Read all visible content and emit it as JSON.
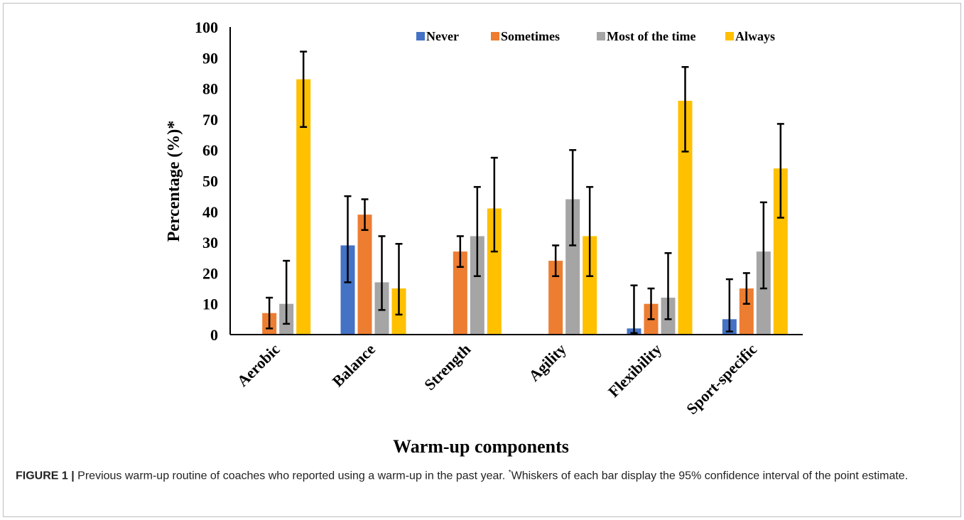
{
  "chart_data": {
    "type": "bar",
    "categories": [
      "Aerobic",
      "Balance",
      "Strength",
      "Agility",
      "Flexibility",
      "Sport-specific"
    ],
    "series": [
      {
        "name": "Never",
        "color": "#4472C4",
        "values": [
          null,
          29,
          null,
          null,
          2,
          5
        ],
        "error_low": [
          null,
          17,
          null,
          null,
          0.5,
          1
        ],
        "error_high": [
          null,
          45,
          null,
          null,
          16,
          18
        ]
      },
      {
        "name": "Sometimes",
        "color": "#ED7D31",
        "values": [
          7,
          39,
          27,
          24,
          10,
          15
        ],
        "error_low": [
          2,
          34,
          22,
          19,
          5,
          10
        ],
        "error_high": [
          12,
          44,
          32,
          29,
          15,
          20
        ]
      },
      {
        "name": "Most of the time",
        "color": "#A5A5A5",
        "values": [
          10,
          17,
          32,
          44,
          12,
          27
        ],
        "error_low": [
          3.5,
          8,
          19,
          29,
          5,
          15
        ],
        "error_high": [
          24,
          32,
          48,
          60,
          26.5,
          43
        ]
      },
      {
        "name": "Always",
        "color": "#FFC000",
        "values": [
          83,
          15,
          41,
          32,
          76,
          54
        ],
        "error_low": [
          67.5,
          6.5,
          27,
          19,
          59.5,
          38
        ],
        "error_high": [
          92,
          29.5,
          57.5,
          48,
          87,
          68.5
        ]
      }
    ],
    "xlabel": "Warm-up components",
    "ylabel": "Percentage (%)*",
    "ylim": [
      0,
      100
    ],
    "yticks": [
      "0",
      "10",
      "20",
      "30",
      "40",
      "50",
      "60",
      "70",
      "80",
      "90",
      "100"
    ],
    "legend_position": "top",
    "grid": false
  },
  "caption": {
    "label": "FIGURE 1 |",
    "text_before": " Previous warm-up routine of coaches who reported using a warm-up in the past year. ",
    "footnote_marker": "*",
    "text_after": "Whiskers of each bar display the 95% confidence interval of the point estimate."
  }
}
